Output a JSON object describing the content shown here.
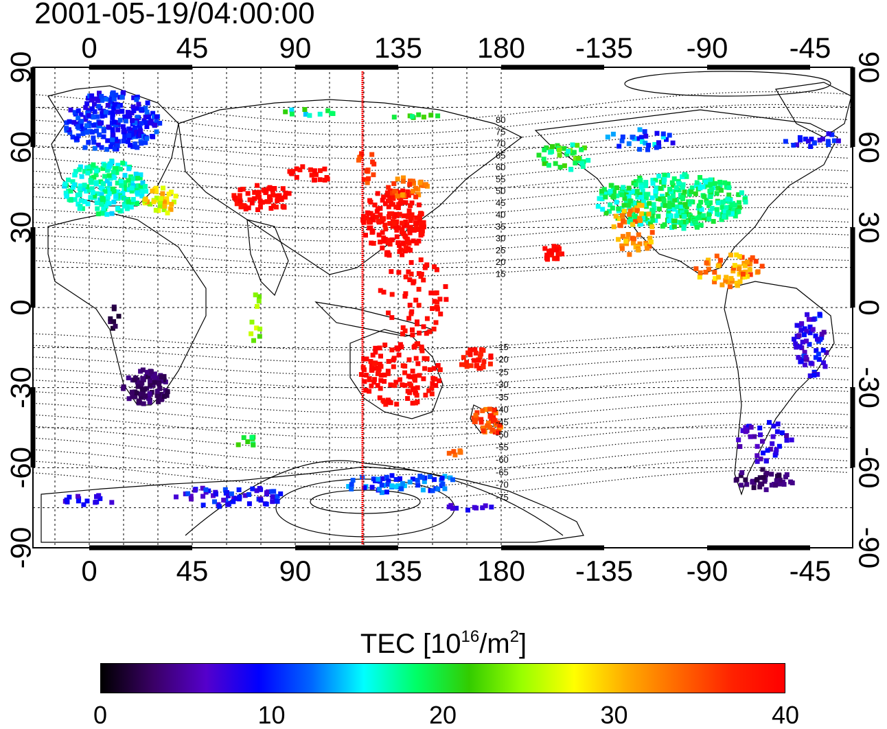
{
  "title": "2001-05-19/04:00:00",
  "map": {
    "top_lon_labels": [
      "0",
      "45",
      "90",
      "135",
      "180",
      "-135",
      "-90",
      "-45"
    ],
    "bottom_lon_labels": [
      "0",
      "45",
      "90",
      "135",
      "180",
      "-135",
      "-90",
      "-45"
    ],
    "left_lat_labels": [
      "90",
      "60",
      "30",
      "0",
      "-30",
      "-60",
      "-90"
    ],
    "right_lat_labels": [
      "90",
      "60",
      "30",
      "0",
      "-30",
      "-60",
      "-90"
    ],
    "magnetic_latitude_labels": [
      "80",
      "75",
      "70",
      "65",
      "60",
      "55",
      "50",
      "45",
      "40",
      "35",
      "30",
      "25",
      "20",
      "15",
      "-15",
      "-20",
      "-25",
      "-30",
      "-35",
      "-40",
      "-45",
      "-50",
      "-55",
      "-60",
      "-65",
      "-70",
      "-75"
    ],
    "meridian_line_color": "#ff0000",
    "grid": true
  },
  "colorbar": {
    "label_prefix": "TEC  [10",
    "label_exp1": "16",
    "label_mid": "/m",
    "label_exp2": "2",
    "label_suffix": "]",
    "ticks": [
      "0",
      "10",
      "20",
      "30",
      "40"
    ],
    "range": [
      0,
      40
    ],
    "colors": [
      "#000000",
      "#3a0066",
      "#5500cc",
      "#0000ff",
      "#0066ff",
      "#00ffff",
      "#00ff66",
      "#33cc00",
      "#99ff00",
      "#ffff00",
      "#ffaa00",
      "#ff6600",
      "#ff2200",
      "#ff0000"
    ]
  }
}
